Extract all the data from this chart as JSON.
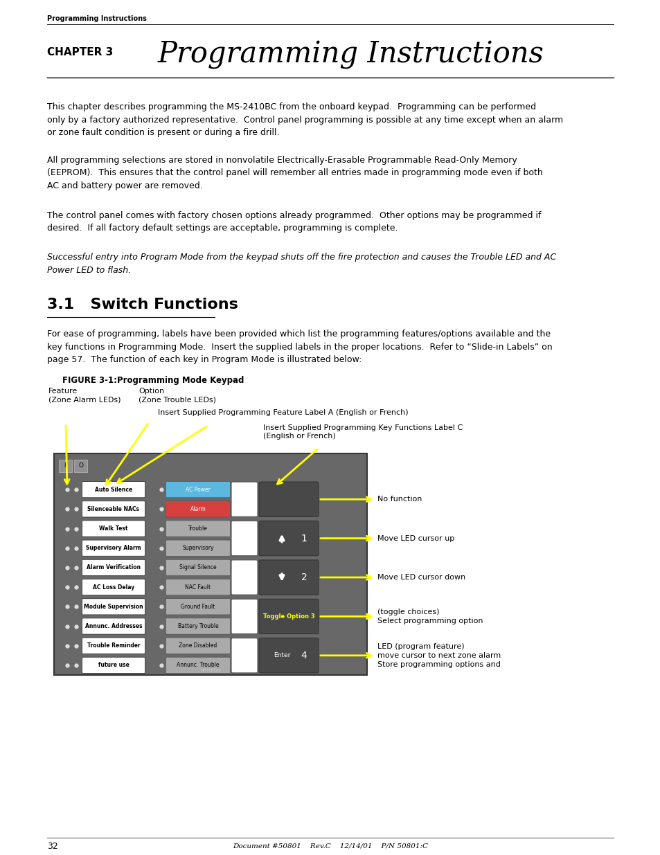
{
  "bg_color": "#ffffff",
  "header_text": "Programming Instructions",
  "chapter_label": "CHAPTER 3",
  "chapter_title": "Programming Instructions",
  "para1": "This chapter describes programming the MS-2410BC from the onboard keypad.  Programming can be performed\nonly by a factory authorized representative.  Control panel programming is possible at any time except when an alarm\nor zone fault condition is present or during a fire drill.",
  "para2": "All programming selections are stored in nonvolatile Electrically-Erasable Programmable Read-Only Memory\n(EEPROM).  This ensures that the control panel will remember all entries made in programming mode even if both\nAC and battery power are removed.",
  "para3": "The control panel comes with factory chosen options already programmed.  Other options may be programmed if\ndesired.  If all factory default settings are acceptable, programming is complete.",
  "para4_italic": "Successful entry into Program Mode from the keypad shuts off the fire protection and causes the Trouble LED and AC\nPower LED to flash.",
  "section_num": "3.1",
  "section_title": "Switch Functions",
  "section_para": "For ease of programming, labels have been provided which list the programming features/options available and the\nkey functions in Programming Mode.  Insert the supplied labels in the proper locations.  Refer to “Slide-in Labels” on\npage 57.  The function of each key in Program Mode is illustrated below:",
  "figure_label": "FIGURE 3-1:Programming Mode Keypad",
  "footer_page": "32",
  "footer_center": "Document #50801    Rev.C    12/14/01    P/N 50801:C",
  "left_buttons": [
    [
      "Auto Silence",
      "Silenceable NACs"
    ],
    [
      "Walk Test",
      "Supervisory Alarm"
    ],
    [
      "Alarm Verification",
      "AC Loss Delay"
    ],
    [
      "Module Supervision",
      "Annunc. Addresses"
    ],
    [
      "Trouble Reminder",
      "future use"
    ]
  ],
  "mid_buttons": [
    [
      "AC Power",
      "Alarm"
    ],
    [
      "Trouble",
      "Supervisory"
    ],
    [
      "Signal Silence",
      "NAC Fault"
    ],
    [
      "Ground Fault",
      "Battery Trouble"
    ],
    [
      "Zone Disabled",
      "Annunc. Trouble"
    ]
  ],
  "arrow_color": "#ffff00",
  "kp_bg": "#686868",
  "kp_dark": "#484848"
}
